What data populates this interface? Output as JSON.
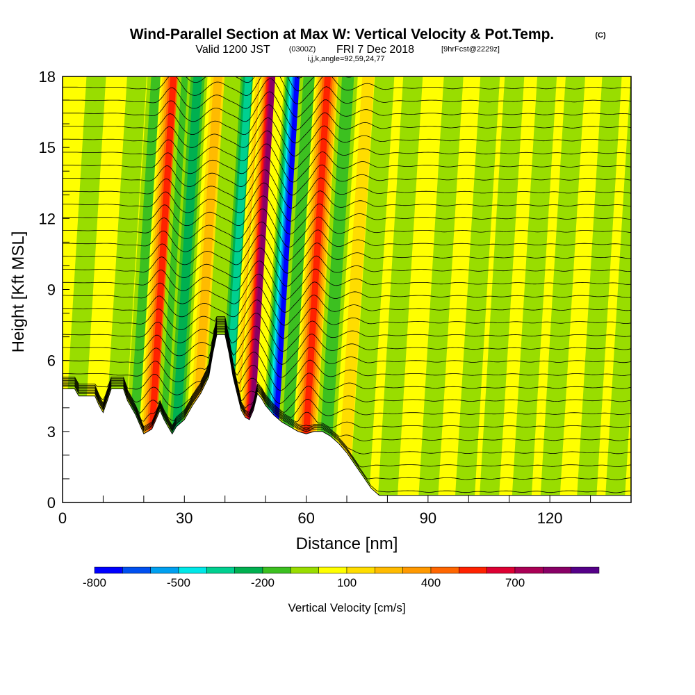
{
  "chart_data": {
    "type": "heatmap",
    "title": "Wind-Parallel Section at Max W: Vertical Velocity & Pot.Temp.",
    "title_mark": "(C)",
    "subtitle_main": "Valid 1200 JST",
    "subtitle_utc": "(0300Z)",
    "subtitle_date": "FRI 7 Dec 2018",
    "subtitle_fcst": "[9hrFcst@2229z]",
    "subtitle_indices": "i,j,k,angle=92,59,24,77",
    "xlabel": "Distance [nm]",
    "ylabel": "Height [Kft MSL]",
    "xlim": [
      0,
      140
    ],
    "ylim": [
      0,
      18
    ],
    "x_ticks": [
      "0",
      "30",
      "60",
      "90",
      "120"
    ],
    "y_ticks": [
      "0",
      "3",
      "6",
      "9",
      "12",
      "15",
      "18"
    ],
    "x_tick_values": [
      0,
      30,
      60,
      90,
      120
    ],
    "y_tick_values": [
      0,
      3,
      6,
      9,
      12,
      15,
      18
    ],
    "colorbar": {
      "label": "Vertical Velocity [cm/s]",
      "ticks": [
        "-800",
        "-500",
        "-200",
        "100",
        "400",
        "700"
      ],
      "tick_values": [
        -800,
        -500,
        -200,
        100,
        400,
        700
      ],
      "range": [
        -800,
        1000
      ],
      "bins": [
        {
          "from": -800,
          "to": -700,
          "color": "#0000ff"
        },
        {
          "from": -700,
          "to": -600,
          "color": "#0050f0"
        },
        {
          "from": -600,
          "to": -500,
          "color": "#00a0f0"
        },
        {
          "from": -500,
          "to": -400,
          "color": "#00e8e8"
        },
        {
          "from": -400,
          "to": -300,
          "color": "#00d090"
        },
        {
          "from": -300,
          "to": -200,
          "color": "#00b050"
        },
        {
          "from": -200,
          "to": -100,
          "color": "#3cc020"
        },
        {
          "from": -100,
          "to": 0,
          "color": "#99dd00"
        },
        {
          "from": 0,
          "to": 100,
          "color": "#ffff00"
        },
        {
          "from": 100,
          "to": 200,
          "color": "#ffdd00"
        },
        {
          "from": 200,
          "to": 300,
          "color": "#ffbb00"
        },
        {
          "from": 300,
          "to": 400,
          "color": "#ff9900"
        },
        {
          "from": 400,
          "to": 500,
          "color": "#ff6600"
        },
        {
          "from": 500,
          "to": 600,
          "color": "#ff2200"
        },
        {
          "from": 600,
          "to": 700,
          "color": "#dd0033"
        },
        {
          "from": 700,
          "to": 800,
          "color": "#aa0055"
        },
        {
          "from": 800,
          "to": 900,
          "color": "#880066"
        },
        {
          "from": 900,
          "to": 1000,
          "color": "#550088"
        }
      ]
    },
    "wave_bands": [
      {
        "x": 2,
        "w": -20
      },
      {
        "x": 12,
        "w": -80
      },
      {
        "x": 17,
        "w": -150
      },
      {
        "x": 21,
        "w": 620
      },
      {
        "x": 24.5,
        "w": -180
      },
      {
        "x": 27,
        "w": -320
      },
      {
        "x": 32,
        "w": 250
      },
      {
        "x": 36,
        "w": -60
      },
      {
        "x": 39.5,
        "w": -420
      },
      {
        "x": 43,
        "w": 300
      },
      {
        "x": 45.5,
        "w": 880
      },
      {
        "x": 48.5,
        "w": 60
      },
      {
        "x": 51.5,
        "w": -760
      },
      {
        "x": 54.5,
        "w": -200
      },
      {
        "x": 59,
        "w": 640
      },
      {
        "x": 64,
        "w": -160
      },
      {
        "x": 69,
        "w": 180
      },
      {
        "x": 73,
        "w": -120
      },
      {
        "x": 80,
        "w": -60
      },
      {
        "x": 90,
        "w": -80
      },
      {
        "x": 99,
        "w": -90
      },
      {
        "x": 105,
        "w": -70
      },
      {
        "x": 113,
        "w": -80
      },
      {
        "x": 120,
        "w": -90
      },
      {
        "x": 129,
        "w": -60
      },
      {
        "x": 136,
        "w": -100
      }
    ],
    "terrain": [
      [
        0,
        4.8
      ],
      [
        3,
        4.8
      ],
      [
        4,
        4.5
      ],
      [
        8,
        4.5
      ],
      [
        9,
        4.1
      ],
      [
        10,
        3.8
      ],
      [
        11,
        4.3
      ],
      [
        12,
        4.8
      ],
      [
        15,
        4.8
      ],
      [
        16,
        4.3
      ],
      [
        18,
        3.7
      ],
      [
        19,
        3.3
      ],
      [
        20,
        2.9
      ],
      [
        22,
        3.1
      ],
      [
        23,
        3.5
      ],
      [
        24,
        3.9
      ],
      [
        25,
        3.5
      ],
      [
        26,
        3.2
      ],
      [
        27,
        2.9
      ],
      [
        28,
        3.2
      ],
      [
        30,
        3.5
      ],
      [
        32,
        4.1
      ],
      [
        34,
        4.6
      ],
      [
        36,
        5.3
      ],
      [
        37,
        6.3
      ],
      [
        38,
        7.1
      ],
      [
        40,
        7.1
      ],
      [
        41,
        6.3
      ],
      [
        42,
        5.3
      ],
      [
        43,
        4.6
      ],
      [
        44,
        3.9
      ],
      [
        45,
        3.6
      ],
      [
        46,
        3.5
      ],
      [
        47,
        3.9
      ],
      [
        48,
        4.6
      ],
      [
        49,
        4.4
      ],
      [
        50,
        4.1
      ],
      [
        52,
        3.7
      ],
      [
        54,
        3.4
      ],
      [
        56,
        3.2
      ],
      [
        58,
        3.0
      ],
      [
        60,
        2.9
      ],
      [
        62,
        3.0
      ],
      [
        64,
        3.0
      ],
      [
        66,
        2.8
      ],
      [
        68,
        2.5
      ],
      [
        70,
        2.1
      ],
      [
        72,
        1.6
      ],
      [
        74,
        1.1
      ],
      [
        76,
        0.6
      ],
      [
        78,
        0.3
      ],
      [
        80,
        0.3
      ],
      [
        140,
        0.3
      ]
    ],
    "isentrope_count": 34
  }
}
